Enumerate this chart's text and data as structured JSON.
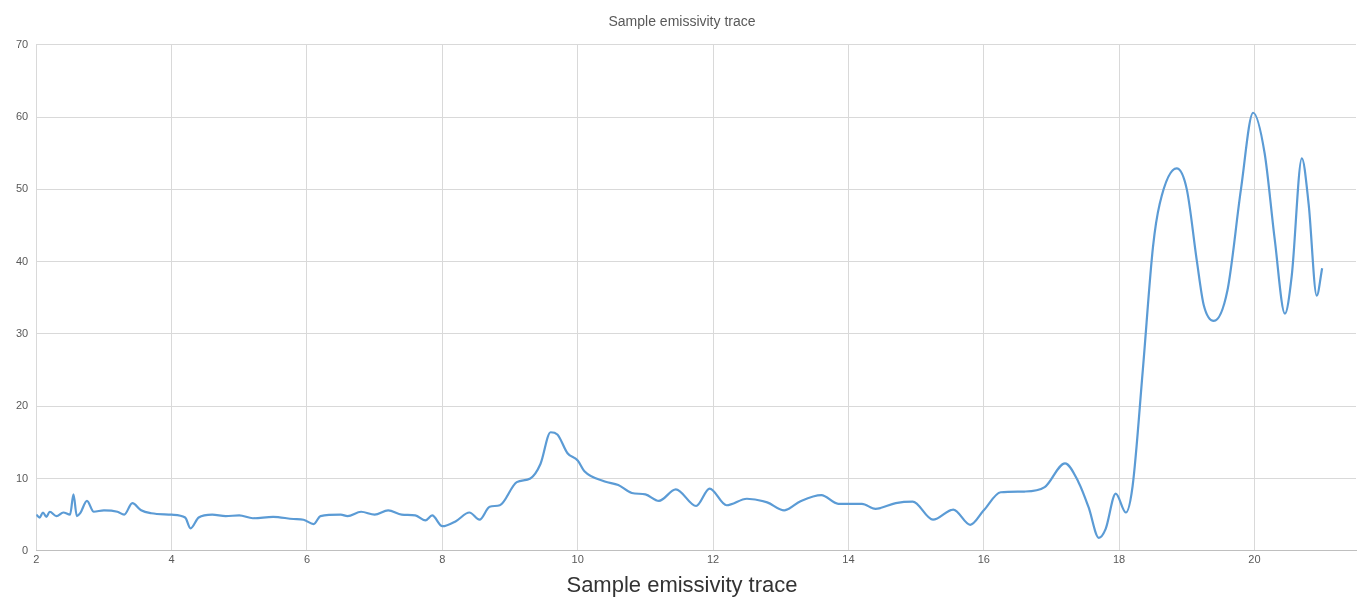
{
  "chart_data": {
    "type": "line",
    "title": "Sample emissivity trace",
    "annotations": [
      "Sample emissivity trace"
    ],
    "xlim": [
      2,
      21.5
    ],
    "xticks": [
      2,
      4,
      6,
      8,
      10,
      12,
      14,
      16,
      18,
      20
    ],
    "ylim": [
      0,
      70
    ],
    "yticks": [
      0,
      10,
      20,
      30,
      40,
      50,
      60,
      70
    ],
    "grid": true,
    "legend": false,
    "marker": "none",
    "series": [
      {
        "color": "#5b9bd5",
        "x": [
          2.0,
          2.05,
          2.1,
          2.15,
          2.2,
          2.3,
          2.4,
          2.5,
          2.55,
          2.6,
          2.65,
          2.75,
          2.85,
          3.0,
          3.2,
          3.3,
          3.42,
          3.55,
          3.7,
          4.0,
          4.2,
          4.28,
          4.4,
          4.6,
          4.8,
          5.0,
          5.2,
          5.5,
          5.8,
          5.95,
          6.1,
          6.2,
          6.5,
          6.6,
          6.8,
          7.0,
          7.2,
          7.4,
          7.6,
          7.75,
          7.85,
          8.0,
          8.2,
          8.4,
          8.55,
          8.7,
          8.85,
          9.1,
          9.3,
          9.45,
          9.6,
          9.7,
          9.85,
          10.0,
          10.1,
          10.4,
          10.6,
          10.8,
          11.0,
          11.2,
          11.45,
          11.75,
          11.95,
          12.2,
          12.5,
          12.8,
          13.05,
          13.3,
          13.6,
          13.85,
          14.2,
          14.4,
          14.7,
          14.95,
          15.25,
          15.55,
          15.8,
          16.0,
          16.25,
          16.6,
          16.9,
          17.2,
          17.4,
          17.55,
          17.7,
          17.8,
          17.95,
          18.1,
          18.2,
          18.35,
          18.5,
          18.6,
          18.85,
          19.0,
          19.15,
          19.25,
          19.4,
          19.6,
          19.8,
          19.98,
          20.15,
          20.3,
          20.45,
          20.55,
          20.7,
          20.8,
          20.92,
          21.0
        ],
        "values": [
          5,
          4.6,
          5.3,
          4.7,
          5.4,
          4.8,
          5.3,
          5.0,
          7.8,
          4.8,
          5.2,
          6.9,
          5.4,
          5.6,
          5.4,
          5.0,
          6.6,
          5.6,
          5.2,
          5.0,
          4.6,
          3.1,
          4.6,
          5.0,
          4.8,
          4.9,
          4.5,
          4.7,
          4.4,
          4.3,
          3.7,
          4.8,
          5.0,
          4.8,
          5.4,
          5.0,
          5.6,
          5.0,
          4.9,
          4.2,
          4.9,
          3.4,
          4.1,
          5.3,
          4.3,
          6.1,
          6.3,
          9.5,
          10.0,
          12,
          16.4,
          16.1,
          13.5,
          12.5,
          11,
          9.6,
          9.1,
          8.0,
          7.8,
          6.9,
          8.5,
          6.2,
          8.6,
          6.3,
          7.2,
          6.7,
          5.6,
          6.9,
          7.7,
          6.5,
          6.5,
          5.8,
          6.6,
          6.8,
          4.3,
          5.7,
          3.6,
          5.6,
          8.1,
          8.2,
          8.8,
          12.1,
          9.5,
          6,
          1.8,
          3,
          7.9,
          5.3,
          9,
          25,
          42,
          48,
          52.9,
          50,
          40,
          34,
          31.8,
          36,
          50,
          60.6,
          55,
          43,
          32.8,
          38,
          54.3,
          48,
          35.3,
          39.1
        ]
      }
    ]
  }
}
